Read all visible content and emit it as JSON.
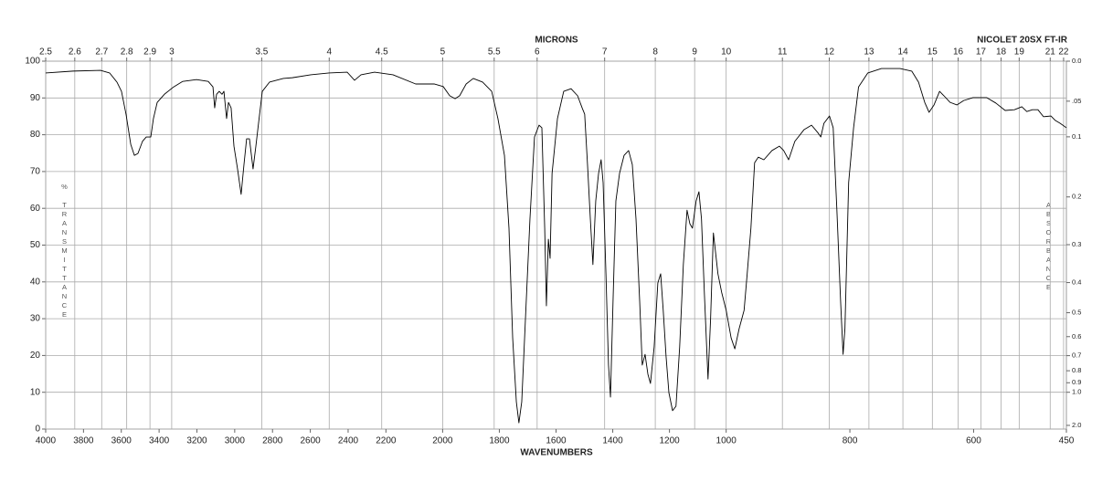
{
  "chart_data": {
    "type": "line",
    "title": "NICOLET 20SX FT-IR",
    "xlabel": "WAVENUMBERS",
    "x2label": "MICRONS",
    "ylabel": "% TRANSMITTANCE",
    "y2label": "ABSORBANCE",
    "color": "#000000",
    "grid": true,
    "xlim": [
      4000,
      450
    ],
    "xbreaks": [
      2200,
      1000
    ],
    "xticks": [
      4000,
      3800,
      3600,
      3400,
      3200,
      3000,
      2800,
      2600,
      2400,
      2200,
      2000,
      1800,
      1600,
      1400,
      1200,
      1000,
      800,
      600,
      450
    ],
    "x2ticks": [
      2.5,
      2.6,
      2.7,
      2.8,
      2.9,
      3,
      3.5,
      4,
      4.5,
      5,
      5.5,
      6,
      7,
      8,
      9,
      10,
      11,
      12,
      13,
      14,
      15,
      16,
      17,
      18,
      19,
      21,
      22
    ],
    "ylim": [
      0,
      100
    ],
    "yticks": [
      0,
      10,
      20,
      30,
      40,
      50,
      60,
      70,
      80,
      90,
      100
    ],
    "y2ticks": [
      {
        "value": 0,
        "label": "0.0"
      },
      {
        "value": 0.05,
        "label": ".05"
      },
      0.1,
      0.2,
      0.3,
      0.4,
      0.5,
      0.6,
      0.7,
      0.8,
      0.9,
      {
        "value": 1,
        "label": "1.0"
      },
      {
        "value": 2,
        "label": "2.0"
      }
    ],
    "x": [
      4000,
      3855,
      3710,
      3662,
      3623,
      3599,
      3575,
      3550,
      3531,
      3512,
      3488,
      3468,
      3444,
      3430,
      3410,
      3372,
      3323,
      3275,
      3202,
      3140,
      3115,
      3106,
      3096,
      3082,
      3067,
      3057,
      3043,
      3033,
      3019,
      3004,
      2985,
      2966,
      2951,
      2937,
      2922,
      2903,
      2888,
      2874,
      2854,
      2816,
      2743,
      2695,
      2598,
      2501,
      2405,
      2366,
      2332,
      2260,
      2175,
      2095,
      2030,
      1998,
      1975,
      1956,
      1940,
      1917,
      1892,
      1859,
      1827,
      1805,
      1782,
      1766,
      1753,
      1740,
      1731,
      1721,
      1708,
      1692,
      1676,
      1660,
      1650,
      1640,
      1634,
      1627,
      1621,
      1614,
      1595,
      1573,
      1547,
      1524,
      1508,
      1499,
      1489,
      1479,
      1470,
      1460,
      1450,
      1441,
      1434,
      1424,
      1415,
      1408,
      1399,
      1389,
      1376,
      1360,
      1344,
      1331,
      1318,
      1305,
      1296,
      1286,
      1276,
      1267,
      1254,
      1241,
      1231,
      1222,
      1212,
      1202,
      1189,
      1177,
      1164,
      1151,
      1138,
      1128,
      1119,
      1106,
      1096,
      1087,
      1077,
      1064,
      1055,
      1045,
      1029,
      1016,
      1000,
      992,
      986,
      979,
      971,
      966,
      960,
      954,
      948,
      939,
      926,
      914,
      907,
      899,
      889,
      874,
      862,
      852,
      847,
      842,
      833,
      827,
      821,
      815,
      811,
      808,
      802,
      794,
      786,
      771,
      749,
      719,
      700,
      689,
      679,
      672,
      664,
      655,
      648,
      638,
      627,
      616,
      601,
      579,
      564,
      549,
      534,
      522,
      514,
      505,
      496,
      487,
      475,
      468,
      460,
      450
    ],
    "values": [
      96.8,
      97.3,
      97.5,
      96.8,
      94.3,
      91.8,
      85.6,
      77.4,
      74.4,
      74.9,
      78.2,
      79.4,
      79.4,
      84.4,
      88.8,
      91.0,
      93.0,
      94.5,
      95.0,
      94.5,
      93.0,
      87.3,
      91.0,
      91.8,
      91.0,
      91.8,
      84.4,
      88.8,
      87.3,
      76.9,
      70.7,
      63.8,
      71.9,
      78.9,
      78.9,
      70.7,
      76.9,
      83.1,
      91.8,
      94.3,
      95.3,
      95.5,
      96.3,
      96.8,
      97.0,
      94.8,
      96.3,
      97.0,
      96.3,
      93.8,
      93.8,
      93.1,
      90.6,
      89.8,
      90.6,
      93.8,
      95.3,
      94.3,
      91.8,
      84.4,
      74.4,
      54.6,
      24.8,
      7.4,
      1.7,
      7.4,
      29.8,
      57.1,
      79.4,
      82.6,
      81.9,
      54.6,
      33.5,
      51.6,
      46.4,
      69.5,
      84.4,
      91.8,
      92.5,
      90.6,
      87.3,
      85.6,
      71.9,
      57.1,
      44.7,
      62.0,
      69.5,
      73.2,
      67.0,
      42.2,
      17.4,
      8.7,
      34.7,
      62.0,
      69.5,
      74.4,
      75.7,
      71.9,
      57.1,
      34.7,
      17.4,
      20.3,
      14.9,
      12.4,
      22.3,
      39.7,
      42.2,
      32.3,
      19.8,
      9.9,
      5.0,
      6.2,
      22.3,
      44.7,
      59.5,
      55.8,
      54.6,
      62.0,
      64.5,
      57.1,
      37.2,
      13.6,
      29.8,
      53.3,
      42.2,
      37.2,
      32.3,
      24.8,
      21.8,
      27.3,
      32.3,
      42.2,
      54.6,
      72.4,
      73.9,
      73.2,
      75.7,
      76.9,
      75.7,
      73.2,
      78.2,
      81.4,
      82.6,
      80.6,
      79.4,
      83.1,
      85.1,
      81.9,
      59.5,
      34.7,
      20.3,
      27.3,
      67.0,
      81.9,
      93.0,
      96.8,
      98.0,
      98.0,
      97.3,
      94.3,
      88.8,
      86.1,
      88.1,
      91.8,
      90.6,
      88.8,
      88.1,
      89.3,
      90.1,
      90.1,
      88.6,
      86.6,
      86.8,
      87.6,
      86.3,
      86.8,
      86.8,
      84.9,
      85.1,
      83.9,
      83.1,
      81.9
    ]
  }
}
